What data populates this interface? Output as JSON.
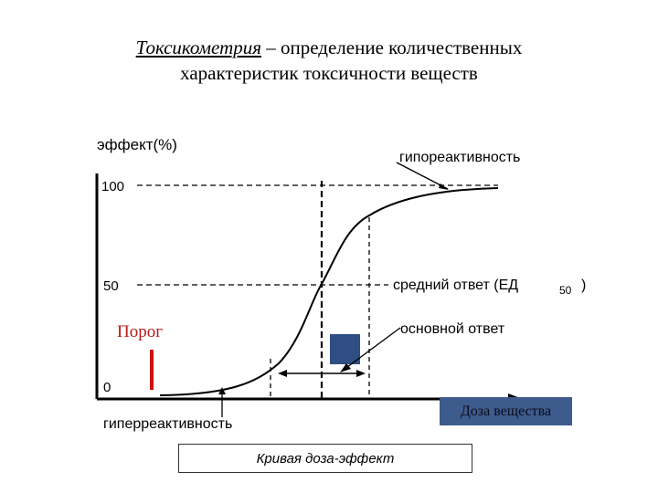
{
  "title": {
    "term": "Токсикометрия",
    "rest_line1": " – определение количественных",
    "line2": "характеристик токсичности веществ"
  },
  "diagram": {
    "y_axis_label": "эффект(%)",
    "ticks": {
      "t100": "100",
      "t50": "50",
      "t0": "0"
    },
    "labels": {
      "hyporeactivity": "гипореактивность",
      "mean_response": "средний ответ (ЕД",
      "mean_response_sub": "50",
      "mean_response_close": ")",
      "main_response": "основной ответ",
      "hyperreactivity": "гиперреактивность",
      "threshold": "Порог",
      "dose": "Доза вещества",
      "caption": "Кривая доза-эффект"
    },
    "colors": {
      "threshold_text": "#b31b1b",
      "threshold_bar": "#cc1111",
      "dose_box": "#3d5b8c",
      "blue_marker": "#2f4e84"
    }
  }
}
